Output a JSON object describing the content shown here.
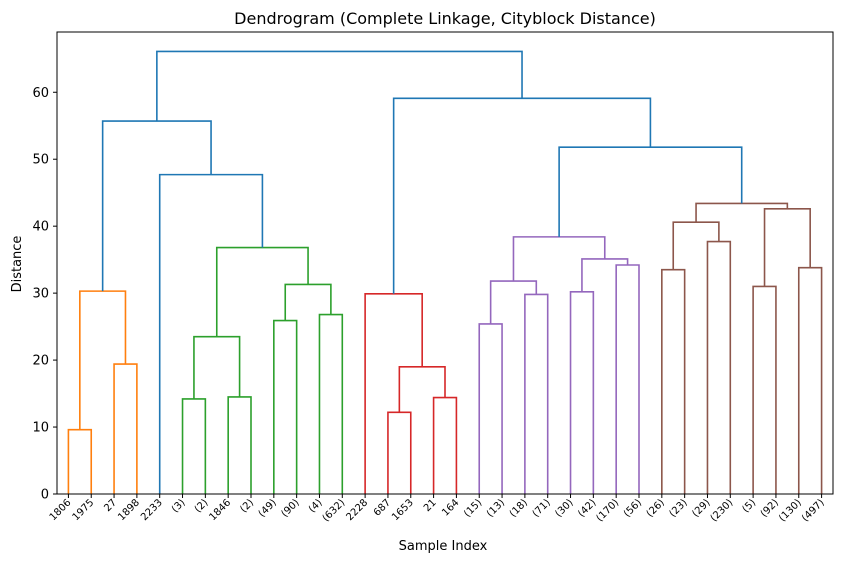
{
  "chart_data": {
    "type": "dendrogram",
    "title": "Dendrogram (Complete Linkage, Cityblock Distance)",
    "xlabel": "Sample Index",
    "ylabel": "Distance",
    "ylim": [
      0,
      69
    ],
    "yticks": [
      0,
      10,
      20,
      30,
      40,
      50,
      60
    ],
    "grid": false,
    "leaf_labels": [
      "1806",
      "1975",
      "27",
      "1898",
      "2233",
      "(3)",
      "(2)",
      "1846",
      "(2)",
      "(49)",
      "(90)",
      "(4)",
      "(632)",
      "2228",
      "687",
      "1653",
      "21",
      "164",
      "(15)",
      "(13)",
      "(18)",
      "(71)",
      "(30)",
      "(42)",
      "(170)",
      "(56)",
      "(26)",
      "(23)",
      "(29)",
      "(230)",
      "(5)",
      "(92)",
      "(130)",
      "(497)"
    ],
    "cluster_colors": {
      "orange": "#ff7f0e",
      "green": "#2ca02c",
      "red": "#d62728",
      "purple": "#9467bd",
      "brown": "#8c564b",
      "above_threshold": "#1f77b4"
    },
    "links": [
      {
        "left": 0,
        "right": 1,
        "height": 9.6,
        "color": "orange"
      },
      {
        "left": 2,
        "right": 3,
        "height": 19.4,
        "color": "orange"
      },
      {
        "left": "L0",
        "right": "L1",
        "height": 30.3,
        "color": "orange"
      },
      {
        "left": 5,
        "right": 6,
        "height": 14.2,
        "color": "green"
      },
      {
        "left": 7,
        "right": 8,
        "height": 14.5,
        "color": "green"
      },
      {
        "left": "L3",
        "right": "L4",
        "height": 23.5,
        "color": "green"
      },
      {
        "left": 9,
        "right": 10,
        "height": 25.9,
        "color": "green"
      },
      {
        "left": 11,
        "right": 12,
        "height": 26.8,
        "color": "green"
      },
      {
        "left": "L6",
        "right": "L7",
        "height": 31.3,
        "color": "green"
      },
      {
        "left": "L5",
        "right": "L8",
        "height": 36.8,
        "color": "green"
      },
      {
        "left": 4,
        "right": "L9",
        "height": 47.7,
        "color": "above_threshold"
      },
      {
        "left": "L2",
        "right": "L10",
        "height": 55.7,
        "color": "above_threshold"
      },
      {
        "left": 14,
        "right": 15,
        "height": 12.2,
        "color": "red"
      },
      {
        "left": 16,
        "right": 17,
        "height": 14.4,
        "color": "red"
      },
      {
        "left": "L12",
        "right": "L13",
        "height": 19.0,
        "color": "red"
      },
      {
        "left": 13,
        "right": "L14",
        "height": 29.9,
        "color": "red"
      },
      {
        "left": 18,
        "right": 19,
        "height": 25.4,
        "color": "purple"
      },
      {
        "left": 20,
        "right": 21,
        "height": 29.8,
        "color": "purple"
      },
      {
        "left": "L16",
        "right": "L17",
        "height": 31.8,
        "color": "purple"
      },
      {
        "left": 22,
        "right": 23,
        "height": 30.2,
        "color": "purple"
      },
      {
        "left": 24,
        "right": 25,
        "height": 34.2,
        "color": "purple"
      },
      {
        "left": "L19",
        "right": "L20",
        "height": 35.1,
        "color": "purple"
      },
      {
        "left": "L18",
        "right": "L21",
        "height": 38.4,
        "color": "purple"
      },
      {
        "left": 26,
        "right": 27,
        "height": 33.5,
        "color": "brown"
      },
      {
        "left": 28,
        "right": 29,
        "height": 37.7,
        "color": "brown"
      },
      {
        "left": "L23",
        "right": "L24",
        "height": 40.6,
        "color": "brown"
      },
      {
        "left": 30,
        "right": 31,
        "height": 31.0,
        "color": "brown"
      },
      {
        "left": 32,
        "right": 33,
        "height": 33.8,
        "color": "brown"
      },
      {
        "left": "L26",
        "right": "L27",
        "height": 42.6,
        "color": "brown"
      },
      {
        "left": "L25",
        "right": "L28",
        "height": 43.4,
        "color": "brown"
      },
      {
        "left": "L22",
        "right": "L29",
        "height": 51.8,
        "color": "above_threshold"
      },
      {
        "left": "L15",
        "right": "L30",
        "height": 59.1,
        "color": "above_threshold"
      },
      {
        "left": "L11",
        "right": "L31",
        "height": 66.1,
        "color": "above_threshold"
      }
    ]
  }
}
